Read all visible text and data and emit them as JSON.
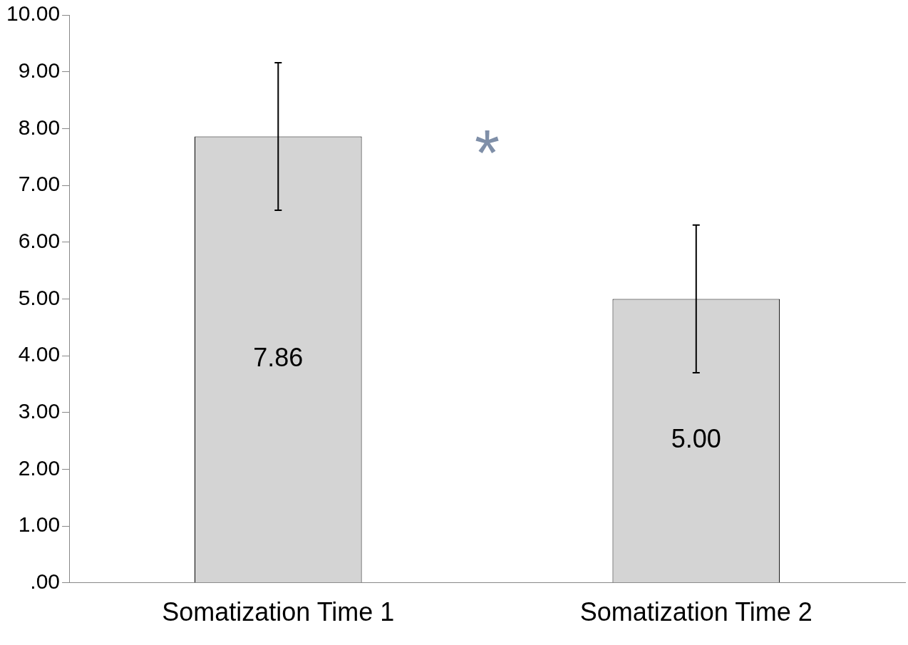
{
  "chart_data": {
    "type": "bar",
    "categories": [
      "Somatization Time 1",
      "Somatization Time 2"
    ],
    "values": [
      7.86,
      5.0
    ],
    "value_labels": [
      "7.86",
      "5.00"
    ],
    "errors": [
      1.3,
      1.3
    ],
    "color": "#d4d4d4",
    "ylim": [
      0,
      10
    ],
    "yticks": [
      {
        "value": 0,
        "label": ".00"
      },
      {
        "value": 1,
        "label": "1.00"
      },
      {
        "value": 2,
        "label": "2.00"
      },
      {
        "value": 3,
        "label": "3.00"
      },
      {
        "value": 4,
        "label": "4.00"
      },
      {
        "value": 5,
        "label": "5.00"
      },
      {
        "value": 6,
        "label": "6.00"
      },
      {
        "value": 7,
        "label": "7.00"
      },
      {
        "value": 8,
        "label": "8.00"
      },
      {
        "value": 9,
        "label": "9.00"
      },
      {
        "value": 10,
        "label": "10.00"
      }
    ],
    "annotations": [
      "*"
    ],
    "grid": false,
    "legend": false
  }
}
